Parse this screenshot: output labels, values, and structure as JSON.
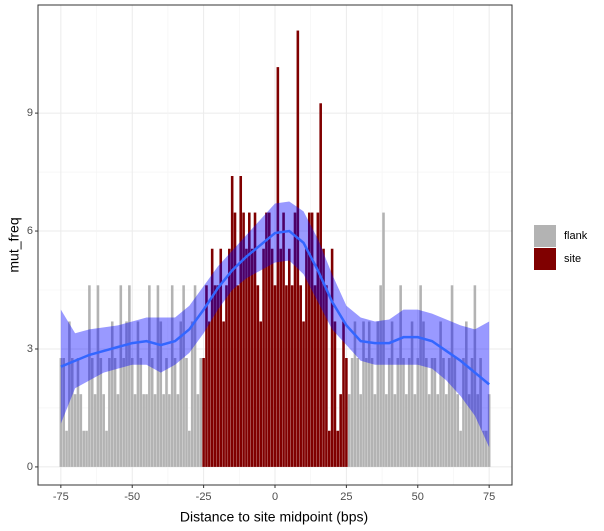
{
  "chart_data": {
    "type": "bar",
    "x_label": "Distance to site midpoint (bps)",
    "y_label": "mut_freq",
    "x": [
      -75,
      -74,
      -73,
      -72,
      -71,
      -70,
      -69,
      -68,
      -67,
      -66,
      -65,
      -64,
      -63,
      -62,
      -61,
      -60,
      -59,
      -58,
      -57,
      -56,
      -55,
      -54,
      -53,
      -52,
      -51,
      -50,
      -49,
      -48,
      -47,
      -46,
      -45,
      -44,
      -43,
      -42,
      -41,
      -40,
      -39,
      -38,
      -37,
      -36,
      -35,
      -34,
      -33,
      -32,
      -31,
      -30,
      -29,
      -28,
      -27,
      -26,
      -25,
      -24,
      -23,
      -22,
      -21,
      -20,
      -19,
      -18,
      -17,
      -16,
      -15,
      -14,
      -13,
      -12,
      -11,
      -10,
      -9,
      -8,
      -7,
      -6,
      -5,
      -4,
      -3,
      -2,
      -1,
      0,
      1,
      2,
      3,
      4,
      5,
      6,
      7,
      8,
      9,
      10,
      11,
      12,
      13,
      14,
      15,
      16,
      17,
      18,
      19,
      20,
      21,
      22,
      23,
      24,
      25,
      26,
      27,
      28,
      29,
      30,
      31,
      32,
      33,
      34,
      35,
      36,
      37,
      38,
      39,
      40,
      41,
      42,
      43,
      44,
      45,
      46,
      47,
      48,
      49,
      50,
      51,
      52,
      53,
      54,
      55,
      56,
      57,
      58,
      59,
      60,
      61,
      62,
      63,
      64,
      65,
      66,
      67,
      68,
      69,
      70,
      71,
      72,
      73,
      74,
      75
    ],
    "series": [
      {
        "name": "flank",
        "color": "#b3b3b3",
        "values": [
          2.77,
          2.77,
          0.92,
          3.7,
          2.77,
          1.85,
          2.77,
          1.85,
          0.92,
          0.92,
          4.62,
          2.77,
          1.85,
          4.62,
          2.77,
          1.85,
          0.92,
          2.77,
          3.7,
          2.77,
          1.85,
          4.62,
          2.77,
          3.7,
          4.62,
          2.77,
          1.85,
          3.7,
          2.77,
          1.85,
          1.85,
          4.62,
          2.77,
          1.85,
          4.62,
          3.7,
          1.85,
          2.77,
          1.85,
          4.62,
          2.77,
          1.85,
          3.7,
          4.62,
          2.77,
          0.92,
          3.7,
          4.62,
          1.85,
          2.77,
          null,
          null,
          null,
          null,
          null,
          null,
          null,
          null,
          null,
          null,
          null,
          null,
          null,
          null,
          null,
          null,
          null,
          null,
          null,
          null,
          null,
          null,
          null,
          null,
          null,
          null,
          null,
          null,
          null,
          null,
          null,
          null,
          null,
          null,
          null,
          null,
          null,
          null,
          null,
          null,
          null,
          null,
          null,
          null,
          null,
          null,
          null,
          null,
          null,
          null,
          null,
          1.85,
          2.77,
          3.7,
          2.77,
          1.85,
          3.7,
          2.77,
          3.7,
          2.77,
          1.85,
          3.7,
          4.62,
          6.47,
          1.85,
          2.77,
          3.7,
          1.85,
          2.77,
          4.62,
          2.77,
          1.85,
          2.77,
          3.7,
          1.85,
          2.77,
          4.62,
          3.7,
          2.77,
          1.85,
          2.77,
          2.77,
          1.85,
          3.7,
          2.77,
          1.85,
          2.77,
          4.62,
          2.77,
          1.85,
          0.92,
          2.77,
          3.7,
          1.85,
          2.77,
          4.62,
          1.85,
          2.77,
          0.92,
          0.92,
          1.85
        ]
      },
      {
        "name": "site",
        "color": "#800000",
        "values": [
          null,
          null,
          null,
          null,
          null,
          null,
          null,
          null,
          null,
          null,
          null,
          null,
          null,
          null,
          null,
          null,
          null,
          null,
          null,
          null,
          null,
          null,
          null,
          null,
          null,
          null,
          null,
          null,
          null,
          null,
          null,
          null,
          null,
          null,
          null,
          null,
          null,
          null,
          null,
          null,
          null,
          null,
          null,
          null,
          null,
          null,
          null,
          null,
          null,
          null,
          2.77,
          4.62,
          3.7,
          5.55,
          4.62,
          4.62,
          5.55,
          3.7,
          4.62,
          5.55,
          7.4,
          6.47,
          4.62,
          7.4,
          6.47,
          5.55,
          6.47,
          5.55,
          6.47,
          4.62,
          3.7,
          5.55,
          6.47,
          6.47,
          5.55,
          4.62,
          10.17,
          5.55,
          6.47,
          4.62,
          5.55,
          4.62,
          6.47,
          11.1,
          4.62,
          3.7,
          5.55,
          6.47,
          6.47,
          4.62,
          6.47,
          9.25,
          5.55,
          4.62,
          0.92,
          5.55,
          3.7,
          0.92,
          1.85,
          3.7,
          2.77,
          null,
          null,
          null,
          null,
          null,
          null,
          null,
          null,
          null,
          null,
          null,
          null,
          null,
          null,
          null,
          null,
          null,
          null,
          null,
          null,
          null,
          null,
          null,
          null,
          null,
          null,
          null,
          null,
          null,
          null,
          null,
          null,
          null,
          null,
          null,
          null,
          null,
          null,
          null,
          null,
          null,
          null,
          null,
          null,
          null,
          null,
          null,
          null,
          null,
          null
        ]
      }
    ],
    "smooth": {
      "color": "#3366ff",
      "band_color": "#0000ff",
      "x": [
        -75,
        -70,
        -65,
        -60,
        -55,
        -50,
        -45,
        -40,
        -35,
        -30,
        -25,
        -20,
        -15,
        -10,
        -5,
        0,
        5,
        10,
        15,
        20,
        25,
        30,
        35,
        40,
        45,
        50,
        55,
        60,
        65,
        70,
        75
      ],
      "values": [
        2.55,
        2.7,
        2.85,
        2.95,
        3.05,
        3.15,
        3.2,
        3.1,
        3.2,
        3.5,
        4.0,
        4.55,
        5.0,
        5.35,
        5.65,
        5.95,
        6.0,
        5.7,
        5.0,
        4.2,
        3.6,
        3.2,
        3.15,
        3.15,
        3.3,
        3.3,
        3.2,
        2.95,
        2.7,
        2.4,
        2.1
      ],
      "upper": [
        4.0,
        3.4,
        3.5,
        3.55,
        3.6,
        3.7,
        3.8,
        3.8,
        3.8,
        4.1,
        4.6,
        5.1,
        5.5,
        5.9,
        6.3,
        6.7,
        6.75,
        6.5,
        5.8,
        4.9,
        4.1,
        3.8,
        3.7,
        3.75,
        4.0,
        4.0,
        3.9,
        3.75,
        3.6,
        3.5,
        3.7
      ],
      "lower": [
        1.1,
        2.0,
        2.2,
        2.4,
        2.5,
        2.6,
        2.6,
        2.4,
        2.6,
        2.9,
        3.4,
        4.0,
        4.5,
        4.8,
        5.0,
        5.2,
        5.25,
        4.9,
        4.2,
        3.5,
        3.1,
        2.7,
        2.6,
        2.6,
        2.6,
        2.6,
        2.5,
        2.2,
        1.8,
        1.3,
        0.5
      ]
    },
    "xlim": [
      -83,
      83
    ],
    "ylim": [
      -0.46,
      11.75
    ],
    "xticks": [
      -75,
      -50,
      -25,
      0,
      25,
      50,
      75
    ],
    "yticks": [
      0,
      3,
      6,
      9
    ],
    "grid": true,
    "legend": "right"
  }
}
